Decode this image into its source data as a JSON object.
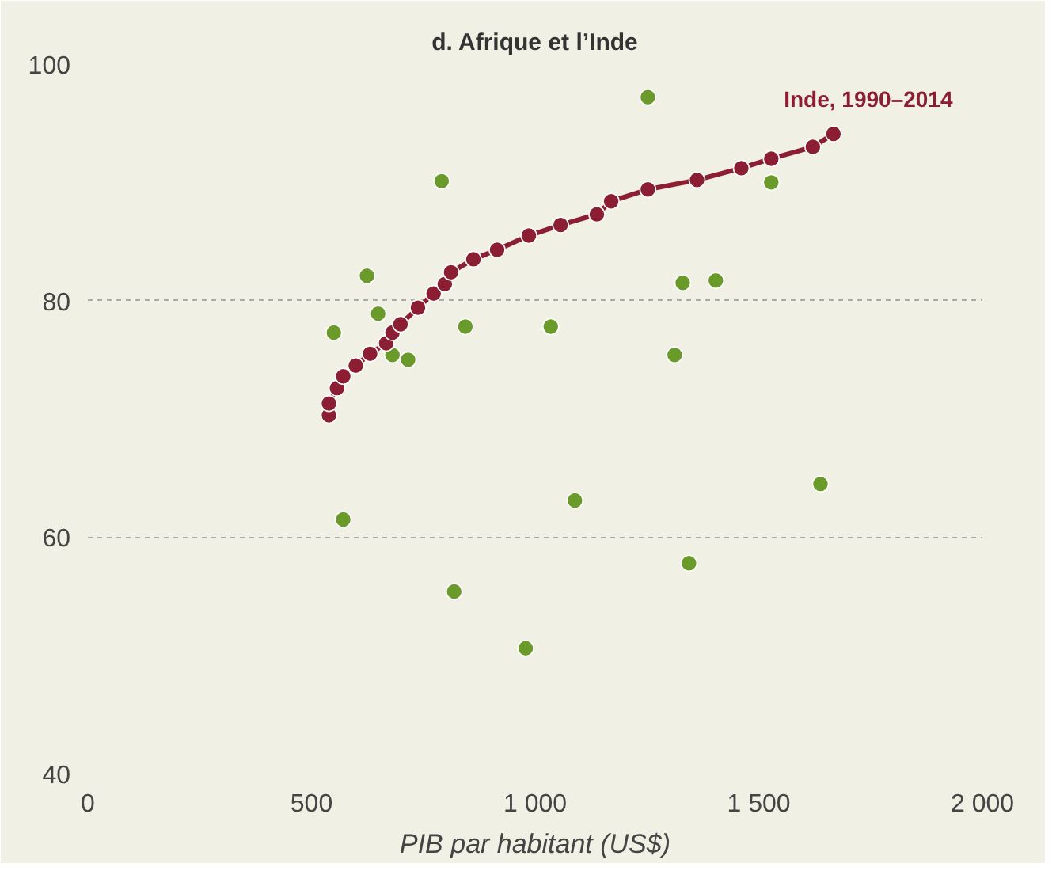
{
  "chart_data": {
    "type": "scatter",
    "title": "d. Afrique et l’Inde",
    "xlabel": "PIB par habitant (US$)",
    "xlim": [
      0,
      2000
    ],
    "ylim": [
      40,
      100
    ],
    "xticks": [
      0,
      500,
      {
        "value": 1000,
        "label": "1 000"
      },
      {
        "value": 1500,
        "label": "1 500"
      },
      {
        "value": 2000,
        "label": "2 000"
      }
    ],
    "yticks": [
      40,
      60,
      80,
      100
    ],
    "grid": "y",
    "marker": "circle",
    "series": [
      {
        "color": "#6a9a2a",
        "x": [
          1252,
          791,
          1528,
          624,
          1330,
          1404,
          550,
          649,
          844,
          1035,
          681,
          716,
          1312,
          571,
          1089,
          1638,
          819,
          1344,
          979
        ],
        "values": [
          97.2,
          90.1,
          90.0,
          82.1,
          81.5,
          81.7,
          77.3,
          78.9,
          77.8,
          77.8,
          75.4,
          75.0,
          75.4,
          61.5,
          63.1,
          64.5,
          55.4,
          57.8,
          50.6
        ]
      },
      {
        "type": "line",
        "name": "Inde, 1990–2014",
        "color": "#8b1e33",
        "marker": "circle",
        "x": [
          539,
          539,
          557,
          571,
          599,
          631,
          667,
          681,
          699,
          738,
          773,
          798,
          812,
          862,
          915,
          986,
          1057,
          1138,
          1170,
          1252,
          1362,
          1461,
          1528,
          1621,
          1667
        ],
        "values": [
          70.3,
          71.3,
          72.6,
          73.6,
          74.5,
          75.5,
          76.4,
          77.3,
          78.0,
          79.4,
          80.6,
          81.4,
          82.4,
          83.5,
          84.3,
          85.5,
          86.4,
          87.3,
          88.4,
          89.4,
          90.2,
          91.2,
          92.0,
          93.0,
          94.1
        ]
      }
    ]
  }
}
